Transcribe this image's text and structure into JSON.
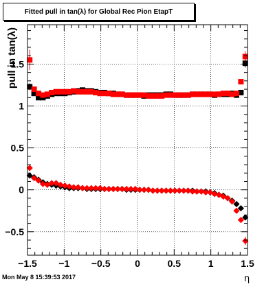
{
  "chart_data": {
    "type": "scatter",
    "title": "Fitted pull in tan(λ) for Global Rec Pion EtapT",
    "xlabel": "η",
    "ylabel": "pull in tan(λ)",
    "xlim": [
      -1.5,
      1.5
    ],
    "ylim": [
      -0.78,
      1.97
    ],
    "x_ticks": [
      -1.5,
      -1,
      -0.5,
      0,
      0.5,
      1,
      1.5
    ],
    "x_tick_labels": [
      "−1.5",
      "−1",
      "−0.5",
      "0",
      "0.5",
      "1",
      "1.5"
    ],
    "y_ticks": [
      -0.5,
      0,
      0.5,
      1,
      1.5
    ],
    "y_tick_labels": [
      "−0.5",
      "0",
      "0.5",
      "1",
      "1.5"
    ],
    "grid": true,
    "series": [
      {
        "name": "",
        "color": "#000000",
        "marker": "square",
        "x": [
          -1.47,
          -1.41,
          -1.35,
          -1.29,
          -1.23,
          -1.17,
          -1.11,
          -1.05,
          -0.99,
          -0.93,
          -0.87,
          -0.81,
          -0.75,
          -0.69,
          -0.63,
          -0.57,
          -0.51,
          -0.45,
          -0.39,
          -0.33,
          -0.27,
          -0.21,
          -0.15,
          -0.09,
          -0.03,
          0.03,
          0.09,
          0.15,
          0.21,
          0.27,
          0.33,
          0.39,
          0.45,
          0.51,
          0.57,
          0.63,
          0.69,
          0.75,
          0.81,
          0.87,
          0.93,
          0.99,
          1.05,
          1.11,
          1.17,
          1.23,
          1.29,
          1.35,
          1.41,
          1.47
        ],
        "y": [
          1.23,
          1.15,
          1.1,
          1.1,
          1.12,
          1.14,
          1.15,
          1.15,
          1.15,
          1.16,
          1.17,
          1.18,
          1.19,
          1.18,
          1.18,
          1.17,
          1.16,
          1.16,
          1.15,
          1.15,
          1.14,
          1.14,
          1.13,
          1.13,
          1.13,
          1.13,
          1.12,
          1.13,
          1.13,
          1.13,
          1.13,
          1.14,
          1.14,
          1.13,
          1.13,
          1.13,
          1.13,
          1.14,
          1.14,
          1.14,
          1.14,
          1.14,
          1.13,
          1.14,
          1.14,
          1.14,
          1.15,
          1.13,
          1.16,
          1.51
        ],
        "errors": [
          0.04,
          0.02,
          0.02,
          0.01,
          0.01,
          0.01,
          0.01,
          0.01,
          0.01,
          0.01,
          0.01,
          0.01,
          0.01,
          0.01,
          0.01,
          0.01,
          0.01,
          0.01,
          0.01,
          0.01,
          0.01,
          0.01,
          0.01,
          0.01,
          0.01,
          0.01,
          0.01,
          0.01,
          0.01,
          0.01,
          0.01,
          0.01,
          0.01,
          0.01,
          0.01,
          0.01,
          0.01,
          0.01,
          0.01,
          0.01,
          0.01,
          0.01,
          0.01,
          0.01,
          0.01,
          0.01,
          0.01,
          0.02,
          0.02,
          0.05
        ]
      },
      {
        "name": "",
        "color": "#ff0000",
        "marker": "square",
        "x": [
          -1.47,
          -1.41,
          -1.35,
          -1.29,
          -1.23,
          -1.17,
          -1.11,
          -1.05,
          -0.99,
          -0.93,
          -0.87,
          -0.81,
          -0.75,
          -0.69,
          -0.63,
          -0.57,
          -0.51,
          -0.45,
          -0.39,
          -0.33,
          -0.27,
          -0.21,
          -0.15,
          -0.09,
          -0.03,
          0.03,
          0.09,
          0.15,
          0.21,
          0.27,
          0.33,
          0.39,
          0.45,
          0.51,
          0.57,
          0.63,
          0.69,
          0.75,
          0.81,
          0.87,
          0.93,
          0.99,
          1.05,
          1.11,
          1.17,
          1.23,
          1.29,
          1.35,
          1.41,
          1.47
        ],
        "y": [
          1.55,
          1.2,
          1.15,
          1.13,
          1.14,
          1.16,
          1.17,
          1.17,
          1.17,
          1.17,
          1.18,
          1.17,
          1.17,
          1.17,
          1.17,
          1.16,
          1.15,
          1.15,
          1.15,
          1.14,
          1.14,
          1.14,
          1.13,
          1.13,
          1.13,
          1.13,
          1.13,
          1.12,
          1.12,
          1.12,
          1.12,
          1.13,
          1.13,
          1.13,
          1.13,
          1.13,
          1.13,
          1.14,
          1.14,
          1.14,
          1.14,
          1.14,
          1.14,
          1.14,
          1.15,
          1.15,
          1.14,
          1.15,
          1.29,
          1.59
        ],
        "errors": [
          0.12,
          0.03,
          0.02,
          0.01,
          0.01,
          0.01,
          0.01,
          0.01,
          0.01,
          0.01,
          0.01,
          0.01,
          0.01,
          0.01,
          0.01,
          0.01,
          0.01,
          0.01,
          0.01,
          0.01,
          0.01,
          0.01,
          0.01,
          0.01,
          0.01,
          0.01,
          0.01,
          0.01,
          0.01,
          0.01,
          0.01,
          0.01,
          0.01,
          0.01,
          0.01,
          0.01,
          0.01,
          0.01,
          0.01,
          0.01,
          0.01,
          0.01,
          0.01,
          0.01,
          0.01,
          0.01,
          0.01,
          0.02,
          0.03,
          0.06
        ]
      },
      {
        "name": "",
        "color": "#000000",
        "marker": "diamond",
        "x": [
          -1.47,
          -1.41,
          -1.35,
          -1.29,
          -1.23,
          -1.17,
          -1.11,
          -1.05,
          -0.99,
          -0.93,
          -0.87,
          -0.81,
          -0.75,
          -0.69,
          -0.63,
          -0.57,
          -0.51,
          -0.45,
          -0.39,
          -0.33,
          -0.27,
          -0.21,
          -0.15,
          -0.09,
          -0.03,
          0.03,
          0.09,
          0.15,
          0.21,
          0.27,
          0.33,
          0.39,
          0.45,
          0.51,
          0.57,
          0.63,
          0.69,
          0.75,
          0.81,
          0.87,
          0.93,
          0.99,
          1.05,
          1.11,
          1.17,
          1.23,
          1.29,
          1.35,
          1.41,
          1.47
        ],
        "y": [
          0.17,
          0.15,
          0.12,
          0.09,
          0.07,
          0.06,
          0.05,
          0.04,
          0.03,
          0.02,
          0.02,
          0.02,
          0.02,
          0.01,
          0.01,
          0.01,
          0.01,
          0.01,
          0.01,
          0.01,
          0.01,
          0.01,
          0.0,
          0.0,
          0.0,
          0.0,
          0.0,
          0.0,
          -0.01,
          -0.01,
          -0.01,
          -0.01,
          -0.01,
          -0.01,
          -0.01,
          -0.01,
          -0.01,
          -0.01,
          -0.02,
          -0.02,
          -0.02,
          -0.03,
          -0.04,
          -0.06,
          -0.07,
          -0.1,
          -0.13,
          -0.17,
          -0.22,
          -0.33
        ],
        "errors": [
          0.02,
          0.01,
          0.01,
          0.01,
          0.01,
          0.01,
          0.01,
          0.01,
          0.01,
          0.01,
          0.01,
          0.01,
          0.01,
          0.01,
          0.01,
          0.01,
          0.01,
          0.01,
          0.01,
          0.01,
          0.01,
          0.01,
          0.01,
          0.01,
          0.01,
          0.01,
          0.01,
          0.01,
          0.01,
          0.01,
          0.01,
          0.01,
          0.01,
          0.01,
          0.01,
          0.01,
          0.01,
          0.01,
          0.01,
          0.01,
          0.01,
          0.01,
          0.01,
          0.01,
          0.01,
          0.01,
          0.01,
          0.01,
          0.02,
          0.03
        ]
      },
      {
        "name": "",
        "color": "#ff0000",
        "marker": "diamond",
        "x": [
          -1.47,
          -1.41,
          -1.35,
          -1.29,
          -1.23,
          -1.17,
          -1.11,
          -1.05,
          -0.99,
          -0.93,
          -0.87,
          -0.81,
          -0.75,
          -0.69,
          -0.63,
          -0.57,
          -0.51,
          -0.45,
          -0.39,
          -0.33,
          -0.27,
          -0.21,
          -0.15,
          -0.09,
          -0.03,
          0.03,
          0.09,
          0.15,
          0.21,
          0.27,
          0.33,
          0.39,
          0.45,
          0.51,
          0.57,
          0.63,
          0.69,
          0.75,
          0.81,
          0.87,
          0.93,
          0.99,
          1.05,
          1.11,
          1.17,
          1.23,
          1.29,
          1.35,
          1.41,
          1.47
        ],
        "y": [
          0.26,
          0.14,
          0.11,
          0.07,
          0.06,
          0.08,
          0.08,
          0.06,
          0.05,
          0.04,
          0.03,
          0.03,
          0.02,
          0.02,
          0.02,
          0.02,
          0.02,
          0.01,
          0.01,
          0.01,
          0.01,
          0.01,
          0.01,
          0.01,
          0.01,
          0.0,
          0.0,
          0.0,
          -0.01,
          -0.01,
          -0.01,
          -0.01,
          -0.01,
          -0.01,
          -0.01,
          -0.01,
          -0.01,
          -0.02,
          -0.02,
          -0.02,
          -0.03,
          -0.03,
          -0.05,
          -0.06,
          -0.08,
          -0.1,
          -0.14,
          -0.25,
          -0.36,
          -0.61
        ],
        "errors": [
          0.03,
          0.01,
          0.01,
          0.01,
          0.01,
          0.01,
          0.01,
          0.01,
          0.01,
          0.01,
          0.01,
          0.01,
          0.01,
          0.01,
          0.01,
          0.01,
          0.01,
          0.01,
          0.01,
          0.01,
          0.01,
          0.01,
          0.01,
          0.01,
          0.01,
          0.01,
          0.01,
          0.01,
          0.01,
          0.01,
          0.01,
          0.01,
          0.01,
          0.01,
          0.01,
          0.01,
          0.01,
          0.01,
          0.01,
          0.01,
          0.01,
          0.01,
          0.01,
          0.01,
          0.01,
          0.01,
          0.01,
          0.02,
          0.03,
          0.05
        ]
      }
    ]
  },
  "footer": {
    "timestamp": "Mon May  8 15:39:53 2017"
  }
}
